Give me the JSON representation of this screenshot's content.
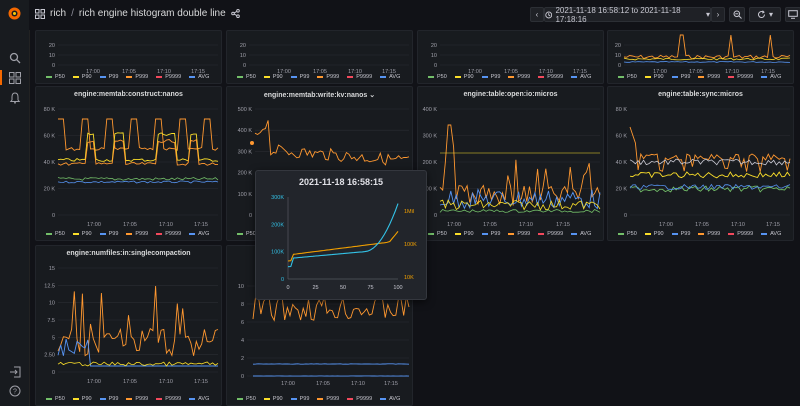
{
  "breadcrumb": {
    "folder": "rich",
    "separator": "/",
    "dashboard": "rich engine histogram double line"
  },
  "time_range": "2021-11-18 16:58:12 to 2021-11-18 17:18:16",
  "legend": [
    {
      "name": "P50",
      "color": "#73bf69"
    },
    {
      "name": "P90",
      "color": "#fade2a"
    },
    {
      "name": "P99",
      "color": "#5794f2"
    },
    {
      "name": "P999",
      "color": "#ff9830"
    },
    {
      "name": "P9999",
      "color": "#f2495c"
    },
    {
      "name": "AVG",
      "color": "#5794f2"
    }
  ],
  "x_ticks": [
    "17:00",
    "17:05",
    "17:10",
    "17:15"
  ],
  "panels": {
    "top1": {
      "title": "",
      "y_ticks": [
        "20",
        "10",
        "0"
      ]
    },
    "top2": {
      "title": "",
      "y_ticks": [
        "20",
        "10",
        "0"
      ]
    },
    "top3": {
      "title": "",
      "y_ticks": [
        "20",
        "10",
        "0"
      ]
    },
    "top4": {
      "title": "",
      "y_ticks": [
        "20",
        "10",
        "0"
      ]
    },
    "p1": {
      "title": "engine:memtab:construct:nanos",
      "y_ticks": [
        "80 K",
        "60 K",
        "40 K",
        "20 K",
        "0"
      ]
    },
    "p2": {
      "title": "engine:memtab:write:kv:nanos",
      "y_ticks": [
        "500 K",
        "400 K",
        "300 K",
        "200 K",
        "100 K",
        "0"
      ]
    },
    "p3": {
      "title": "engine:table:open:io:micros",
      "y_ticks": [
        "400 K",
        "300 K",
        "200 K",
        "100 K",
        "0"
      ]
    },
    "p4": {
      "title": "engine:table:sync:micros",
      "y_ticks": [
        "80 K",
        "60 K",
        "40 K",
        "20 K",
        "0"
      ]
    },
    "p5": {
      "title": "engine:numfiles:in:singlecompaction",
      "y_ticks": [
        "15",
        "12.5",
        "10",
        "7.5",
        "5",
        "2.50",
        "0"
      ]
    },
    "p6": {
      "title": "",
      "y_ticks": [
        "10",
        "8",
        "6",
        "4",
        "2",
        "0"
      ]
    }
  },
  "tooltip": {
    "title": "2021-11-18 16:58:15",
    "left_ticks": [
      "300K",
      "200K",
      "100K",
      "0"
    ],
    "right_ticks": [
      "1Mil",
      "100K",
      "10K"
    ],
    "x_ticks": [
      "0",
      "25",
      "50",
      "75",
      "100"
    ]
  }
}
